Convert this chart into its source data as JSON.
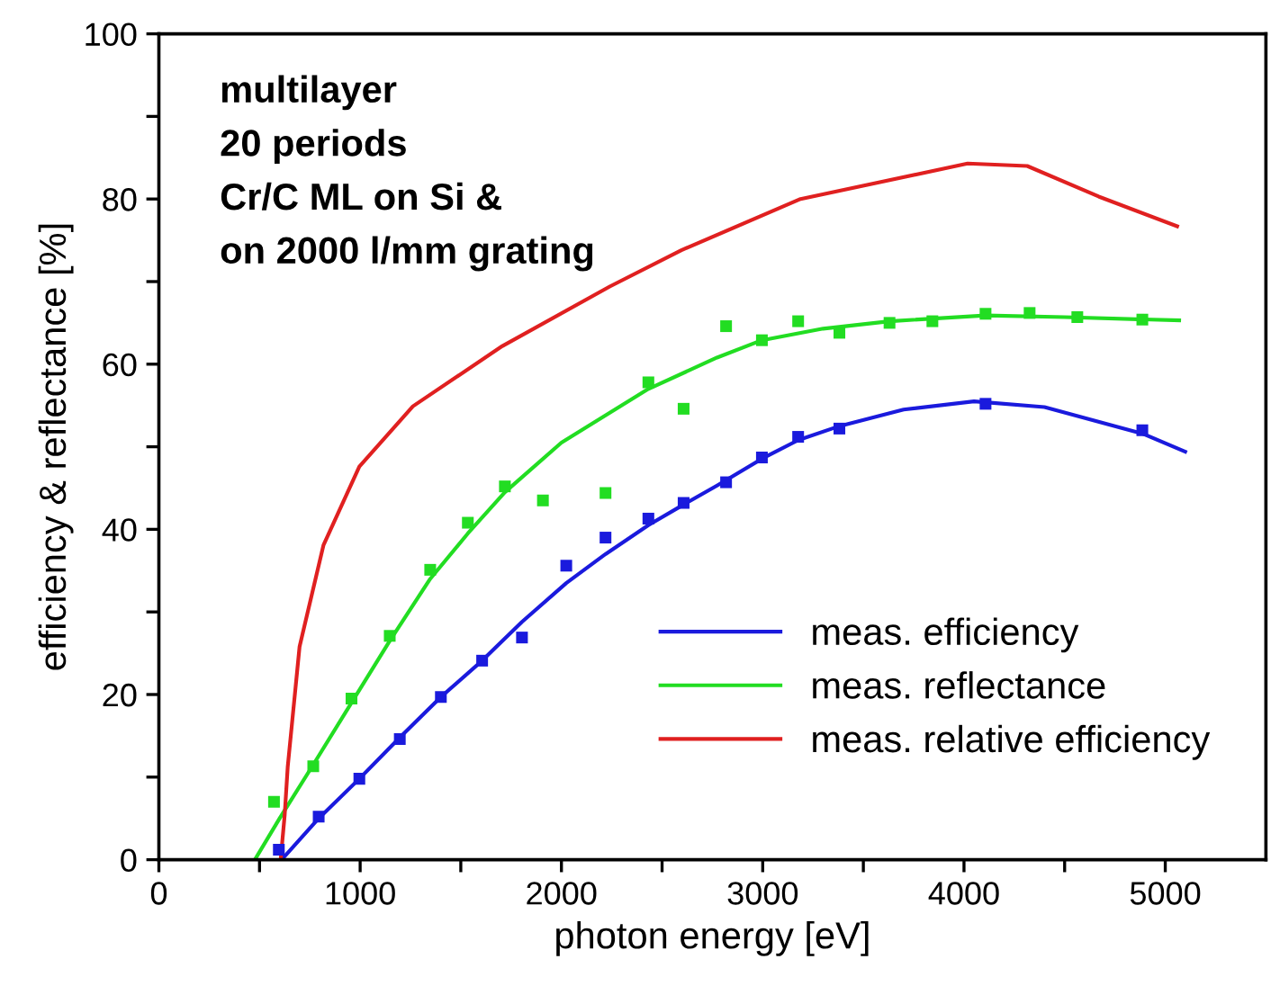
{
  "chart_data": {
    "type": "line",
    "xlabel": "photon energy [eV]",
    "ylabel": "efficiency & reflectance [%]",
    "annotations": [
      "multilayer",
      "20 periods",
      "Cr/C ML on Si &",
      "on 2000 l/mm grating"
    ],
    "xlim": [
      0,
      5500
    ],
    "ylim": [
      0,
      100
    ],
    "xticks": [
      0,
      {
        "value": 500,
        "label": null
      },
      1000,
      {
        "value": 1500,
        "label": null
      },
      2000,
      {
        "value": 2500,
        "label": null
      },
      3000,
      {
        "value": 3500,
        "label": null
      },
      4000,
      {
        "value": 4500,
        "label": null
      },
      5000
    ],
    "yticks": [
      0,
      {
        "value": 10,
        "label": null
      },
      20,
      {
        "value": 30,
        "label": null
      },
      40,
      {
        "value": 50,
        "label": null
      },
      60,
      {
        "value": 70,
        "label": null
      },
      80,
      {
        "value": 90,
        "label": null
      },
      100
    ],
    "grid": false,
    "legend": "bottom right",
    "line_style": "solid",
    "series": [
      {
        "type": "scatter",
        "marker": "square",
        "color": "#1a1add",
        "x": [
          596,
          794,
          996,
          1197,
          1401,
          1606,
          1804,
          2024,
          2219,
          2432,
          2607,
          2818,
          2996,
          3176,
          3381,
          4107,
          4886
        ],
        "values": [
          1.2,
          5.2,
          9.8,
          14.6,
          19.7,
          24.1,
          26.9,
          35.6,
          39.0,
          41.3,
          43.2,
          45.7,
          48.7,
          51.2,
          52.2,
          55.2,
          52.0
        ]
      },
      {
        "type": "scatter",
        "marker": "square",
        "color": "#22dd22",
        "x": [
          572,
          767,
          957,
          1147,
          1348,
          1535,
          1719,
          1908,
          2219,
          2432,
          2607,
          2818,
          2996,
          3176,
          3381,
          3630,
          3843,
          4107,
          4326,
          4563,
          4886
        ],
        "values": [
          7.0,
          11.3,
          19.5,
          27.1,
          35.1,
          40.8,
          45.2,
          43.5,
          44.4,
          57.8,
          54.6,
          64.6,
          62.9,
          65.2,
          63.8,
          65.0,
          65.2,
          66.1,
          66.2,
          65.7,
          65.4
        ]
      },
      {
        "name": "meas. efficiency",
        "color": "#1a1add",
        "x": [
          610,
          794,
          996,
          1197,
          1401,
          1606,
          1804,
          2024,
          2219,
          2432,
          2607,
          2773,
          3000,
          3176,
          3381,
          3700,
          4050,
          4400,
          4886,
          5099
        ],
        "values": [
          0,
          5,
          9.8,
          14.8,
          19.7,
          24.1,
          28.8,
          33.5,
          37,
          40.5,
          43,
          45.3,
          48.6,
          50.8,
          52.5,
          54.5,
          55.5,
          54.8,
          51.6,
          49.4
        ]
      },
      {
        "name": "meas. reflectance",
        "color": "#22dd22",
        "x": [
          477,
          600,
          767,
          957,
          1147,
          1348,
          1535,
          1719,
          2000,
          2432,
          2773,
          2996,
          3300,
          3630,
          4107,
          4500,
          5069
        ],
        "values": [
          0,
          5,
          11.5,
          19,
          26.5,
          34,
          39.5,
          44.5,
          50.5,
          57,
          60.8,
          62.9,
          64.3,
          65.2,
          65.9,
          65.7,
          65.3
        ]
      },
      {
        "name": "meas. relative efficiency",
        "color": "#e02020",
        "x": [
          605,
          625,
          640,
          699,
          818,
          996,
          1262,
          1707,
          2240,
          2596,
          3188,
          4018,
          4314,
          4669,
          5059
        ],
        "values": [
          0,
          5.4,
          11.2,
          25.8,
          38.1,
          47.6,
          54.9,
          62.2,
          69.4,
          73.8,
          80.0,
          84.3,
          84.0,
          80.3,
          76.7
        ]
      }
    ]
  }
}
